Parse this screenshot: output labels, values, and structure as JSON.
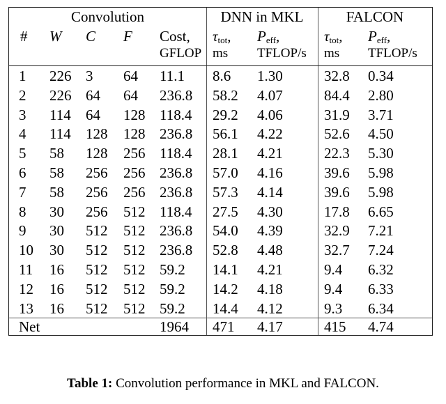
{
  "table": {
    "groups": {
      "convolution": "Convolution",
      "mkl": "DNN in MKL",
      "falcon": "FALCON"
    },
    "headers": {
      "num": "#",
      "w": "W",
      "c": "C",
      "f": "F",
      "cost_line1": "Cost,",
      "cost_line2": "GFLOP",
      "mkl_tau_sym": "τ",
      "mkl_tau_sub": "tot",
      "mkl_tau_comma": ",",
      "mkl_tau_unit": "ms",
      "mkl_p_sym": "P",
      "mkl_p_sub": "eff",
      "mkl_p_comma": ",",
      "mkl_p_unit": "TFLOP/s",
      "fal_tau_sym": "τ",
      "fal_tau_sub": "tot",
      "fal_tau_comma": ",",
      "fal_tau_unit": "ms",
      "fal_p_sym": "P",
      "fal_p_sub": "eff",
      "fal_p_comma": ",",
      "fal_p_unit": "TFLOP/s"
    },
    "rows": [
      {
        "num": "1",
        "w": "226",
        "c": "3",
        "f": "64",
        "cost": "11.1",
        "mkl_tau": "8.6",
        "mkl_p": "1.30",
        "fal_tau": "32.8",
        "fal_p": "0.34"
      },
      {
        "num": "2",
        "w": "226",
        "c": "64",
        "f": "64",
        "cost": "236.8",
        "mkl_tau": "58.2",
        "mkl_p": "4.07",
        "fal_tau": "84.4",
        "fal_p": "2.80"
      },
      {
        "num": "3",
        "w": "114",
        "c": "64",
        "f": "128",
        "cost": "118.4",
        "mkl_tau": "29.2",
        "mkl_p": "4.06",
        "fal_tau": "31.9",
        "fal_p": "3.71"
      },
      {
        "num": "4",
        "w": "114",
        "c": "128",
        "f": "128",
        "cost": "236.8",
        "mkl_tau": "56.1",
        "mkl_p": "4.22",
        "fal_tau": "52.6",
        "fal_p": "4.50"
      },
      {
        "num": "5",
        "w": "58",
        "c": "128",
        "f": "256",
        "cost": "118.4",
        "mkl_tau": "28.1",
        "mkl_p": "4.21",
        "fal_tau": "22.3",
        "fal_p": "5.30"
      },
      {
        "num": "6",
        "w": "58",
        "c": "256",
        "f": "256",
        "cost": "236.8",
        "mkl_tau": "57.0",
        "mkl_p": "4.16",
        "fal_tau": "39.6",
        "fal_p": "5.98"
      },
      {
        "num": "7",
        "w": "58",
        "c": "256",
        "f": "256",
        "cost": "236.8",
        "mkl_tau": "57.3",
        "mkl_p": "4.14",
        "fal_tau": "39.6",
        "fal_p": "5.98"
      },
      {
        "num": "8",
        "w": "30",
        "c": "256",
        "f": "512",
        "cost": "118.4",
        "mkl_tau": "27.5",
        "mkl_p": "4.30",
        "fal_tau": "17.8",
        "fal_p": "6.65"
      },
      {
        "num": "9",
        "w": "30",
        "c": "512",
        "f": "512",
        "cost": "236.8",
        "mkl_tau": "54.0",
        "mkl_p": "4.39",
        "fal_tau": "32.9",
        "fal_p": "7.21"
      },
      {
        "num": "10",
        "w": "30",
        "c": "512",
        "f": "512",
        "cost": "236.8",
        "mkl_tau": "52.8",
        "mkl_p": "4.48",
        "fal_tau": "32.7",
        "fal_p": "7.24"
      },
      {
        "num": "11",
        "w": "16",
        "c": "512",
        "f": "512",
        "cost": "59.2",
        "mkl_tau": "14.1",
        "mkl_p": "4.21",
        "fal_tau": "9.4",
        "fal_p": "6.32"
      },
      {
        "num": "12",
        "w": "16",
        "c": "512",
        "f": "512",
        "cost": "59.2",
        "mkl_tau": "14.2",
        "mkl_p": "4.18",
        "fal_tau": "9.4",
        "fal_p": "6.33"
      },
      {
        "num": "13",
        "w": "16",
        "c": "512",
        "f": "512",
        "cost": "59.2",
        "mkl_tau": "14.4",
        "mkl_p": "4.12",
        "fal_tau": "9.3",
        "fal_p": "6.34"
      }
    ],
    "net": {
      "label": "Net",
      "cost": "1964",
      "mkl_tau": "471",
      "mkl_p": "4.17",
      "fal_tau": "415",
      "fal_p": "4.74"
    }
  },
  "caption": {
    "label": "Table 1:",
    "text": " Convolution performance in MKL and FALCON."
  }
}
